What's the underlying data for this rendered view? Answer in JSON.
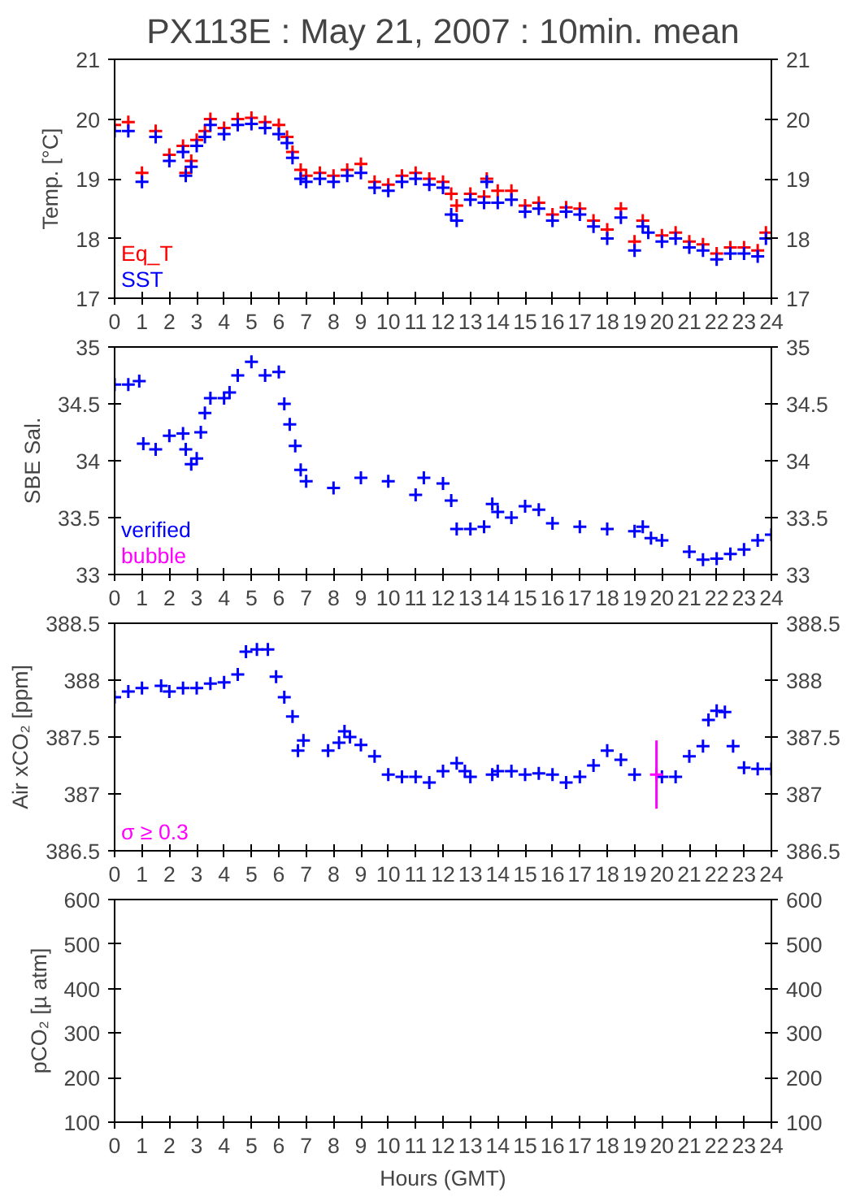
{
  "chart_data": [
    {
      "type": "scatter",
      "title": "PX113E : May 21, 2007 : 10min. mean",
      "ylabel": "Temp. [°C]",
      "xlim": [
        0,
        24
      ],
      "xticks": [
        0,
        1,
        2,
        3,
        4,
        5,
        6,
        7,
        8,
        9,
        10,
        11,
        12,
        13,
        14,
        15,
        16,
        17,
        18,
        19,
        20,
        21,
        22,
        23,
        24
      ],
      "ylim": [
        17,
        21
      ],
      "yticks": [
        17,
        18,
        19,
        20,
        21
      ],
      "y2lim": [
        17,
        21
      ],
      "y2ticks": [
        17,
        18,
        19,
        20,
        21
      ],
      "marker": "cross",
      "grid": false,
      "legend": "bottom left",
      "x": [
        0,
        0.5,
        1.0,
        1.5,
        2.0,
        2.5,
        2.6,
        2.8,
        3.0,
        3.3,
        3.5,
        4.0,
        4.5,
        5.0,
        5.5,
        6.0,
        6.3,
        6.5,
        6.8,
        7.0,
        7.5,
        8.0,
        8.5,
        9.0,
        9.5,
        10.0,
        10.5,
        11.0,
        11.5,
        12.0,
        12.3,
        12.5,
        13.0,
        13.5,
        13.6,
        14.0,
        14.5,
        15.0,
        15.5,
        16.0,
        16.5,
        17.0,
        17.5,
        18.0,
        18.5,
        19.0,
        19.3,
        19.5,
        20.0,
        20.5,
        21.0,
        21.5,
        22.0,
        22.5,
        23.0,
        23.5,
        23.8
      ],
      "series": [
        {
          "name": "Eq_T",
          "color": "#ff0000",
          "values": [
            19.9,
            19.95,
            19.1,
            19.8,
            19.4,
            19.55,
            19.1,
            19.3,
            19.65,
            19.8,
            20.0,
            19.85,
            20.0,
            20.02,
            19.95,
            19.9,
            19.7,
            19.45,
            19.15,
            19.05,
            19.1,
            19.05,
            19.15,
            19.25,
            18.95,
            18.9,
            19.05,
            19.1,
            19.0,
            18.95,
            18.75,
            18.55,
            18.75,
            18.7,
            19.0,
            18.8,
            18.8,
            18.55,
            18.6,
            18.4,
            18.52,
            18.5,
            18.3,
            18.15,
            18.5,
            17.95,
            18.3,
            null,
            18.05,
            18.1,
            17.95,
            17.9,
            17.75,
            17.85,
            17.85,
            17.8,
            18.1
          ]
        },
        {
          "name": "SST",
          "color": "#0000ff",
          "values": [
            19.8,
            19.8,
            18.95,
            19.7,
            19.3,
            19.45,
            19.05,
            19.2,
            19.55,
            19.7,
            19.9,
            19.75,
            19.9,
            19.92,
            19.85,
            19.75,
            19.6,
            19.35,
            19.0,
            18.95,
            19.0,
            18.95,
            19.05,
            19.1,
            18.85,
            18.8,
            18.95,
            19.0,
            18.9,
            18.85,
            18.4,
            18.3,
            18.65,
            18.6,
            18.95,
            18.6,
            18.65,
            18.45,
            18.5,
            18.3,
            18.45,
            18.4,
            18.2,
            18.0,
            18.35,
            17.8,
            18.2,
            18.1,
            17.95,
            18.0,
            17.85,
            17.8,
            17.65,
            17.75,
            17.75,
            17.7,
            18.0
          ]
        }
      ]
    },
    {
      "type": "scatter",
      "ylabel": "SBE Sal.",
      "xlim": [
        0,
        24
      ],
      "xticks": [
        0,
        1,
        2,
        3,
        4,
        5,
        6,
        7,
        8,
        9,
        10,
        11,
        12,
        13,
        14,
        15,
        16,
        17,
        18,
        19,
        20,
        21,
        22,
        23,
        24
      ],
      "ylim": [
        33,
        35
      ],
      "yticks": [
        33,
        33.5,
        34,
        34.5,
        35
      ],
      "y2lim": [
        33,
        35
      ],
      "y2ticks": [
        33,
        33.5,
        34,
        34.5,
        35
      ],
      "marker": "cross",
      "grid": false,
      "legend": "bottom left",
      "x": [
        0,
        0.5,
        0.9,
        1.05,
        1.5,
        2.0,
        2.5,
        2.6,
        2.8,
        3.0,
        3.15,
        3.3,
        3.5,
        4.0,
        4.2,
        4.5,
        5.0,
        5.5,
        6.0,
        6.2,
        6.4,
        6.6,
        6.8,
        7.0,
        8.0,
        9.0,
        10.0,
        11.0,
        11.3,
        12.0,
        12.3,
        12.5,
        13.0,
        13.5,
        13.8,
        14.0,
        14.5,
        15.0,
        15.5,
        16.0,
        17.0,
        18.0,
        19.0,
        19.3,
        19.6,
        20.0,
        21.0,
        21.5,
        22.0,
        22.5,
        23.0,
        23.5,
        24.0
      ],
      "series": [
        {
          "name": "verified",
          "color": "#0000ff",
          "values": [
            34.67,
            34.67,
            34.7,
            34.15,
            34.1,
            34.22,
            34.24,
            34.1,
            33.97,
            34.02,
            34.25,
            34.42,
            34.55,
            34.55,
            34.6,
            34.75,
            34.87,
            34.75,
            34.78,
            34.5,
            34.32,
            34.13,
            33.92,
            33.82,
            33.76,
            33.85,
            33.82,
            33.7,
            33.85,
            33.8,
            33.65,
            33.4,
            33.4,
            33.42,
            33.62,
            33.55,
            33.5,
            33.6,
            33.57,
            33.45,
            33.42,
            33.4,
            33.38,
            33.42,
            33.32,
            33.3,
            33.2,
            33.13,
            33.14,
            33.18,
            33.22,
            33.3,
            33.35
          ]
        },
        {
          "name": "bubble",
          "color": "#ff00ff",
          "values": [
            null,
            null,
            null,
            null,
            null,
            null,
            null,
            null,
            null,
            null,
            null,
            null,
            null,
            null,
            null,
            null,
            null,
            null,
            null,
            null,
            null,
            null,
            null,
            null,
            null,
            null,
            null,
            null,
            null,
            null,
            null,
            null,
            null,
            null,
            null,
            null,
            null,
            null,
            null,
            null,
            null,
            null,
            null,
            null,
            null,
            null,
            null,
            null,
            null,
            null,
            null,
            null,
            null
          ]
        }
      ]
    },
    {
      "type": "scatter",
      "ylabel": "Air xCO₂ [ppm]",
      "xlim": [
        0,
        24
      ],
      "xticks": [
        0,
        1,
        2,
        3,
        4,
        5,
        6,
        7,
        8,
        9,
        10,
        11,
        12,
        13,
        14,
        15,
        16,
        17,
        18,
        19,
        20,
        21,
        22,
        23,
        24
      ],
      "ylim": [
        386.5,
        388.5
      ],
      "yticks": [
        386.5,
        387,
        387.5,
        388,
        388.5
      ],
      "y2lim": [
        386.5,
        388.5
      ],
      "y2ticks": [
        386.5,
        387,
        387.5,
        388,
        388.5
      ],
      "marker": "cross",
      "grid": false,
      "legend": "bottom left",
      "series": [
        {
          "color": "#0000ff",
          "x": [
            0,
            0.5,
            1.0,
            1.7,
            2.0,
            2.5,
            3.0,
            3.5,
            4.0,
            4.5,
            4.8,
            5.2,
            5.6,
            5.9,
            6.2,
            6.5,
            6.7,
            6.9,
            7.8,
            8.2,
            8.4,
            8.6,
            9.0,
            9.5,
            10.0,
            10.5,
            11.0,
            11.5,
            12.0,
            12.5,
            12.8,
            13.0,
            13.8,
            14.0,
            14.5,
            15.0,
            15.5,
            16.0,
            16.5,
            17.0,
            17.5,
            18.0,
            18.5,
            19.0,
            20.0,
            20.5,
            21.0,
            21.5,
            21.7,
            22.0,
            22.3,
            22.6,
            23.0,
            23.5,
            24.0
          ],
          "values": [
            387.85,
            387.9,
            387.93,
            387.95,
            387.9,
            387.93,
            387.93,
            387.97,
            387.98,
            388.05,
            388.25,
            388.27,
            388.27,
            388.03,
            387.85,
            387.68,
            387.38,
            387.47,
            387.38,
            387.45,
            387.55,
            387.5,
            387.43,
            387.33,
            387.17,
            387.15,
            387.15,
            387.1,
            387.2,
            387.27,
            387.2,
            387.15,
            387.17,
            387.2,
            387.2,
            387.17,
            387.18,
            387.17,
            387.1,
            387.15,
            387.25,
            387.38,
            387.3,
            387.17,
            387.15,
            387.15,
            387.33,
            387.42,
            387.65,
            387.73,
            387.72,
            387.42,
            387.23,
            387.22,
            387.22
          ]
        },
        {
          "name": "σ ≥ 0.3",
          "color": "#ff00ff",
          "x": [
            19.8
          ],
          "values": [
            387.17
          ],
          "errors": [
            0.3
          ]
        }
      ]
    },
    {
      "type": "scatter",
      "ylabel": "pCO₂ [µ atm]",
      "xlabel": "Hours (GMT)",
      "xlim": [
        0,
        24
      ],
      "xticks": [
        0,
        1,
        2,
        3,
        4,
        5,
        6,
        7,
        8,
        9,
        10,
        11,
        12,
        13,
        14,
        15,
        16,
        17,
        18,
        19,
        20,
        21,
        22,
        23,
        24
      ],
      "ylim": [
        100,
        600
      ],
      "yticks": [
        100,
        200,
        300,
        400,
        500,
        600
      ],
      "y2lim": [
        100,
        600
      ],
      "y2ticks": [
        100,
        200,
        300,
        400,
        500,
        600
      ],
      "marker": "cross",
      "grid": false
    }
  ]
}
